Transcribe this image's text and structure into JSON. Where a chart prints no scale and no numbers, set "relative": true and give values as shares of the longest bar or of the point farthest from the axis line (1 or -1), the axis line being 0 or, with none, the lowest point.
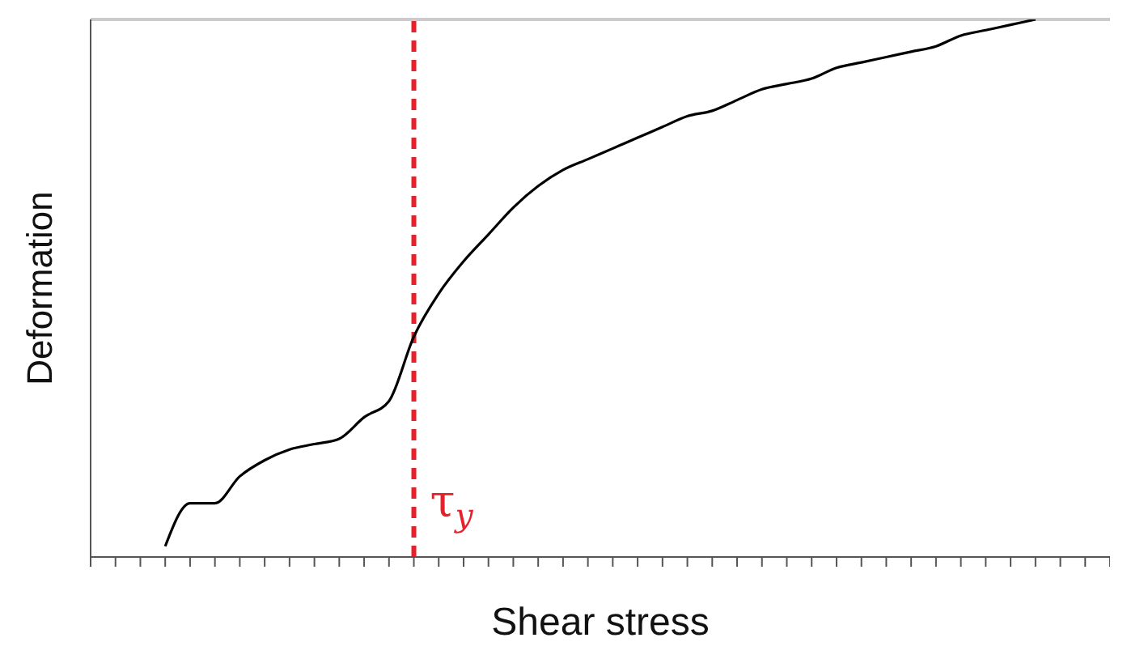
{
  "chart_data": {
    "type": "line",
    "xlabel": "Shear stress",
    "ylabel": "Deformation",
    "relative": true,
    "marker": "none",
    "line_style": "solid",
    "categories": [
      null,
      null,
      null,
      null,
      null,
      null,
      null,
      null,
      null,
      null,
      null,
      null,
      null,
      null,
      null,
      null,
      null,
      null,
      null,
      null,
      null,
      null,
      null,
      null,
      null,
      null,
      null,
      null,
      null,
      null,
      null,
      null,
      null,
      null,
      null,
      null,
      null,
      null,
      null,
      null,
      null,
      null
    ],
    "series": [
      {
        "color": "#000000",
        "values": [
          null,
          null,
          null,
          0.02,
          0.1,
          0.1,
          0.15,
          0.18,
          0.2,
          0.21,
          0.22,
          0.26,
          0.29,
          0.41,
          0.49,
          0.55,
          0.6,
          0.65,
          0.69,
          0.72,
          0.74,
          0.76,
          0.78,
          0.8,
          0.82,
          0.83,
          0.85,
          0.87,
          0.88,
          0.89,
          0.91,
          0.92,
          0.93,
          0.94,
          0.95,
          0.97,
          0.98,
          0.99,
          1,
          null,
          null,
          null
        ]
      }
    ],
    "annotations": [
      "τ$_{y}$"
    ]
  }
}
